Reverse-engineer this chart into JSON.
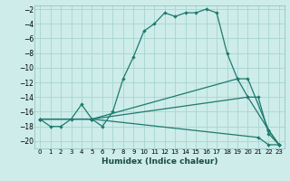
{
  "xlabel": "Humidex (Indice chaleur)",
  "background_color": "#cdecea",
  "grid_color": "#a8d5d0",
  "line_color": "#1e7a6e",
  "xlim": [
    -0.5,
    23.5
  ],
  "ylim": [
    -21,
    -1.5
  ],
  "xticks": [
    0,
    1,
    2,
    3,
    4,
    5,
    6,
    7,
    8,
    9,
    10,
    11,
    12,
    13,
    14,
    15,
    16,
    17,
    18,
    19,
    20,
    21,
    22,
    23
  ],
  "yticks": [
    -2,
    -4,
    -6,
    -8,
    -10,
    -12,
    -14,
    -16,
    -18,
    -20
  ],
  "curve1_x": [
    0,
    1,
    2,
    3,
    4,
    5,
    6,
    7,
    8,
    9,
    10,
    11,
    12,
    13,
    14,
    15,
    16,
    17,
    18,
    19,
    20,
    21,
    22,
    23
  ],
  "curve1_y": [
    -17,
    -18,
    -18,
    -17,
    -15,
    -17,
    -18,
    -16,
    -11.5,
    -8.5,
    -5,
    -4,
    -2.5,
    -3,
    -2.5,
    -2.5,
    -2,
    -2.5,
    -8,
    -11.5,
    -14,
    -14,
    -19,
    -20.5
  ],
  "curve2_x": [
    0,
    5,
    21,
    22,
    23
  ],
  "curve2_y": [
    -17,
    -17,
    -19.5,
    -20.5,
    -20.5
  ],
  "curve3_x": [
    0,
    5,
    19,
    20,
    22,
    23
  ],
  "curve3_y": [
    -17,
    -17,
    -11.5,
    -11.5,
    -18.5,
    -20.5
  ],
  "curve4_x": [
    0,
    5,
    20,
    22,
    23
  ],
  "curve4_y": [
    -17,
    -17,
    -14,
    -18.5,
    -20.5
  ]
}
